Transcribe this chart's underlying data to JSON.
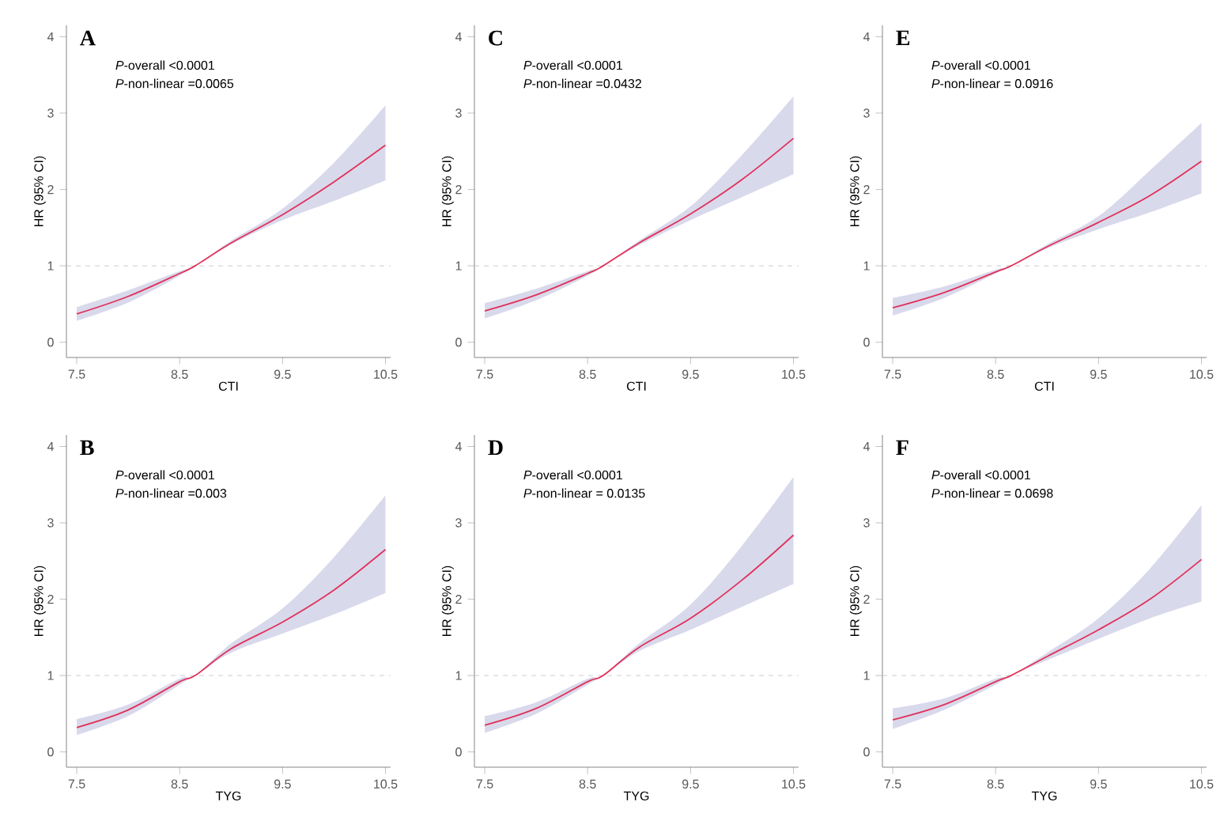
{
  "chart_data": [
    {
      "type": "line",
      "title": "A",
      "xlabel": "CTI",
      "ylabel": "HR (95% CI)",
      "annotations": [
        "*P*-overall  <0.0001",
        "*P*-non-linear =0.0065"
      ],
      "x": [
        7.5,
        8.0,
        8.5,
        8.65,
        9.0,
        9.5,
        10.0,
        10.5
      ],
      "xlim": [
        7.4,
        10.55
      ],
      "ylim": [
        -0.2,
        4.15
      ],
      "xticks": [
        7.5,
        8.5,
        9.5,
        10.5
      ],
      "yticks": [
        0,
        1,
        2,
        3,
        4
      ],
      "ref_lines": [
        {
          "axis": "y",
          "value": 1,
          "color": "#cccccc",
          "line_style": "dashed"
        }
      ],
      "line_style": "solid",
      "series": [
        {
          "color": "#e0325a",
          "values": [
            0.37,
            0.6,
            0.9,
            1.0,
            1.3,
            1.67,
            2.1,
            2.58
          ],
          "lower": [
            0.28,
            0.52,
            0.87,
            1.0,
            1.28,
            1.6,
            1.85,
            2.12
          ],
          "upper": [
            0.46,
            0.68,
            0.93,
            1.0,
            1.33,
            1.75,
            2.35,
            3.1
          ]
        }
      ]
    },
    {
      "type": "line",
      "title": "C",
      "xlabel": "CTI",
      "ylabel": "HR (95% CI)",
      "annotations": [
        "*P*-overall  <0.0001",
        "*P*-non-linear =0.0432"
      ],
      "x": [
        7.5,
        8.0,
        8.5,
        8.65,
        9.0,
        9.5,
        10.0,
        10.5
      ],
      "xlim": [
        7.4,
        10.55
      ],
      "ylim": [
        -0.2,
        4.15
      ],
      "xticks": [
        7.5,
        8.5,
        9.5,
        10.5
      ],
      "yticks": [
        0,
        1,
        2,
        3,
        4
      ],
      "ref_lines": [
        {
          "axis": "y",
          "value": 1,
          "color": "#cccccc",
          "line_style": "dashed"
        }
      ],
      "line_style": "solid",
      "series": [
        {
          "color": "#e0325a",
          "values": [
            0.41,
            0.62,
            0.9,
            1.0,
            1.3,
            1.68,
            2.13,
            2.67
          ],
          "lower": [
            0.31,
            0.55,
            0.87,
            1.0,
            1.27,
            1.6,
            1.9,
            2.2
          ],
          "upper": [
            0.51,
            0.7,
            0.93,
            1.0,
            1.33,
            1.78,
            2.45,
            3.22
          ]
        }
      ]
    },
    {
      "type": "line",
      "title": "E",
      "xlabel": "CTI",
      "ylabel": "HR (95% CI)",
      "annotations": [
        "*P*-overall  <0.0001",
        "*P*-non-linear = 0.0916"
      ],
      "x": [
        7.5,
        8.0,
        8.5,
        8.65,
        9.0,
        9.5,
        10.0,
        10.5
      ],
      "xlim": [
        7.4,
        10.55
      ],
      "ylim": [
        -0.2,
        4.15
      ],
      "xticks": [
        7.5,
        8.5,
        9.5,
        10.5
      ],
      "yticks": [
        0,
        1,
        2,
        3,
        4
      ],
      "ref_lines": [
        {
          "axis": "y",
          "value": 1,
          "color": "#cccccc",
          "line_style": "dashed"
        }
      ],
      "line_style": "solid",
      "series": [
        {
          "color": "#e0325a",
          "values": [
            0.45,
            0.65,
            0.92,
            1.0,
            1.25,
            1.57,
            1.92,
            2.37
          ],
          "lower": [
            0.35,
            0.58,
            0.9,
            1.0,
            1.23,
            1.48,
            1.7,
            1.95
          ],
          "upper": [
            0.58,
            0.73,
            0.95,
            1.0,
            1.28,
            1.65,
            2.25,
            2.87
          ]
        }
      ]
    },
    {
      "type": "line",
      "title": "B",
      "xlabel": "TYG",
      "ylabel": "HR (95% CI)",
      "annotations": [
        "*P*-overall  <0.0001",
        "*P*-non-linear =0.003"
      ],
      "x": [
        7.5,
        8.0,
        8.5,
        8.65,
        9.0,
        9.5,
        10.0,
        10.5
      ],
      "xlim": [
        7.4,
        10.55
      ],
      "ylim": [
        -0.2,
        4.15
      ],
      "xticks": [
        7.5,
        8.5,
        9.5,
        10.5
      ],
      "yticks": [
        0,
        1,
        2,
        3,
        4
      ],
      "ref_lines": [
        {
          "axis": "y",
          "value": 1,
          "color": "#cccccc",
          "line_style": "dashed"
        }
      ],
      "line_style": "solid",
      "series": [
        {
          "color": "#e0325a",
          "values": [
            0.32,
            0.55,
            0.92,
            1.0,
            1.35,
            1.7,
            2.12,
            2.65
          ],
          "lower": [
            0.22,
            0.47,
            0.88,
            1.0,
            1.3,
            1.55,
            1.8,
            2.08
          ],
          "upper": [
            0.43,
            0.62,
            0.96,
            1.0,
            1.42,
            1.88,
            2.55,
            3.36
          ]
        }
      ]
    },
    {
      "type": "line",
      "title": "D",
      "xlabel": "TYG",
      "ylabel": "HR (95% CI)",
      "annotations": [
        "*P*-overall  <0.0001",
        "*P*-non-linear = 0.0135"
      ],
      "x": [
        7.5,
        8.0,
        8.5,
        8.65,
        9.0,
        9.5,
        10.0,
        10.5
      ],
      "xlim": [
        7.4,
        10.55
      ],
      "ylim": [
        -0.2,
        4.15
      ],
      "xticks": [
        7.5,
        8.5,
        9.5,
        10.5
      ],
      "yticks": [
        0,
        1,
        2,
        3,
        4
      ],
      "ref_lines": [
        {
          "axis": "y",
          "value": 1,
          "color": "#cccccc",
          "line_style": "dashed"
        }
      ],
      "line_style": "solid",
      "series": [
        {
          "color": "#e0325a",
          "values": [
            0.35,
            0.57,
            0.92,
            1.0,
            1.37,
            1.75,
            2.25,
            2.84
          ],
          "lower": [
            0.25,
            0.5,
            0.88,
            1.0,
            1.32,
            1.6,
            1.9,
            2.2
          ],
          "upper": [
            0.47,
            0.65,
            0.96,
            1.0,
            1.42,
            1.93,
            2.7,
            3.6
          ]
        }
      ]
    },
    {
      "type": "line",
      "title": "F",
      "xlabel": "TYG",
      "ylabel": "HR (95% CI)",
      "annotations": [
        "*P*-overall  <0.0001",
        "*P*-non-linear  = 0.0698"
      ],
      "x": [
        7.5,
        8.0,
        8.5,
        8.65,
        9.0,
        9.5,
        10.0,
        10.5
      ],
      "xlim": [
        7.4,
        10.55
      ],
      "ylim": [
        -0.2,
        4.15
      ],
      "xticks": [
        7.5,
        8.5,
        9.5,
        10.5
      ],
      "yticks": [
        0,
        1,
        2,
        3,
        4
      ],
      "ref_lines": [
        {
          "axis": "y",
          "value": 1,
          "color": "#cccccc",
          "line_style": "dashed"
        }
      ],
      "line_style": "solid",
      "series": [
        {
          "color": "#e0325a",
          "values": [
            0.42,
            0.62,
            0.92,
            1.0,
            1.25,
            1.6,
            2.0,
            2.52
          ],
          "lower": [
            0.3,
            0.55,
            0.88,
            1.0,
            1.2,
            1.48,
            1.75,
            1.97
          ],
          "upper": [
            0.57,
            0.7,
            0.96,
            1.0,
            1.3,
            1.75,
            2.4,
            3.23
          ]
        }
      ]
    }
  ]
}
